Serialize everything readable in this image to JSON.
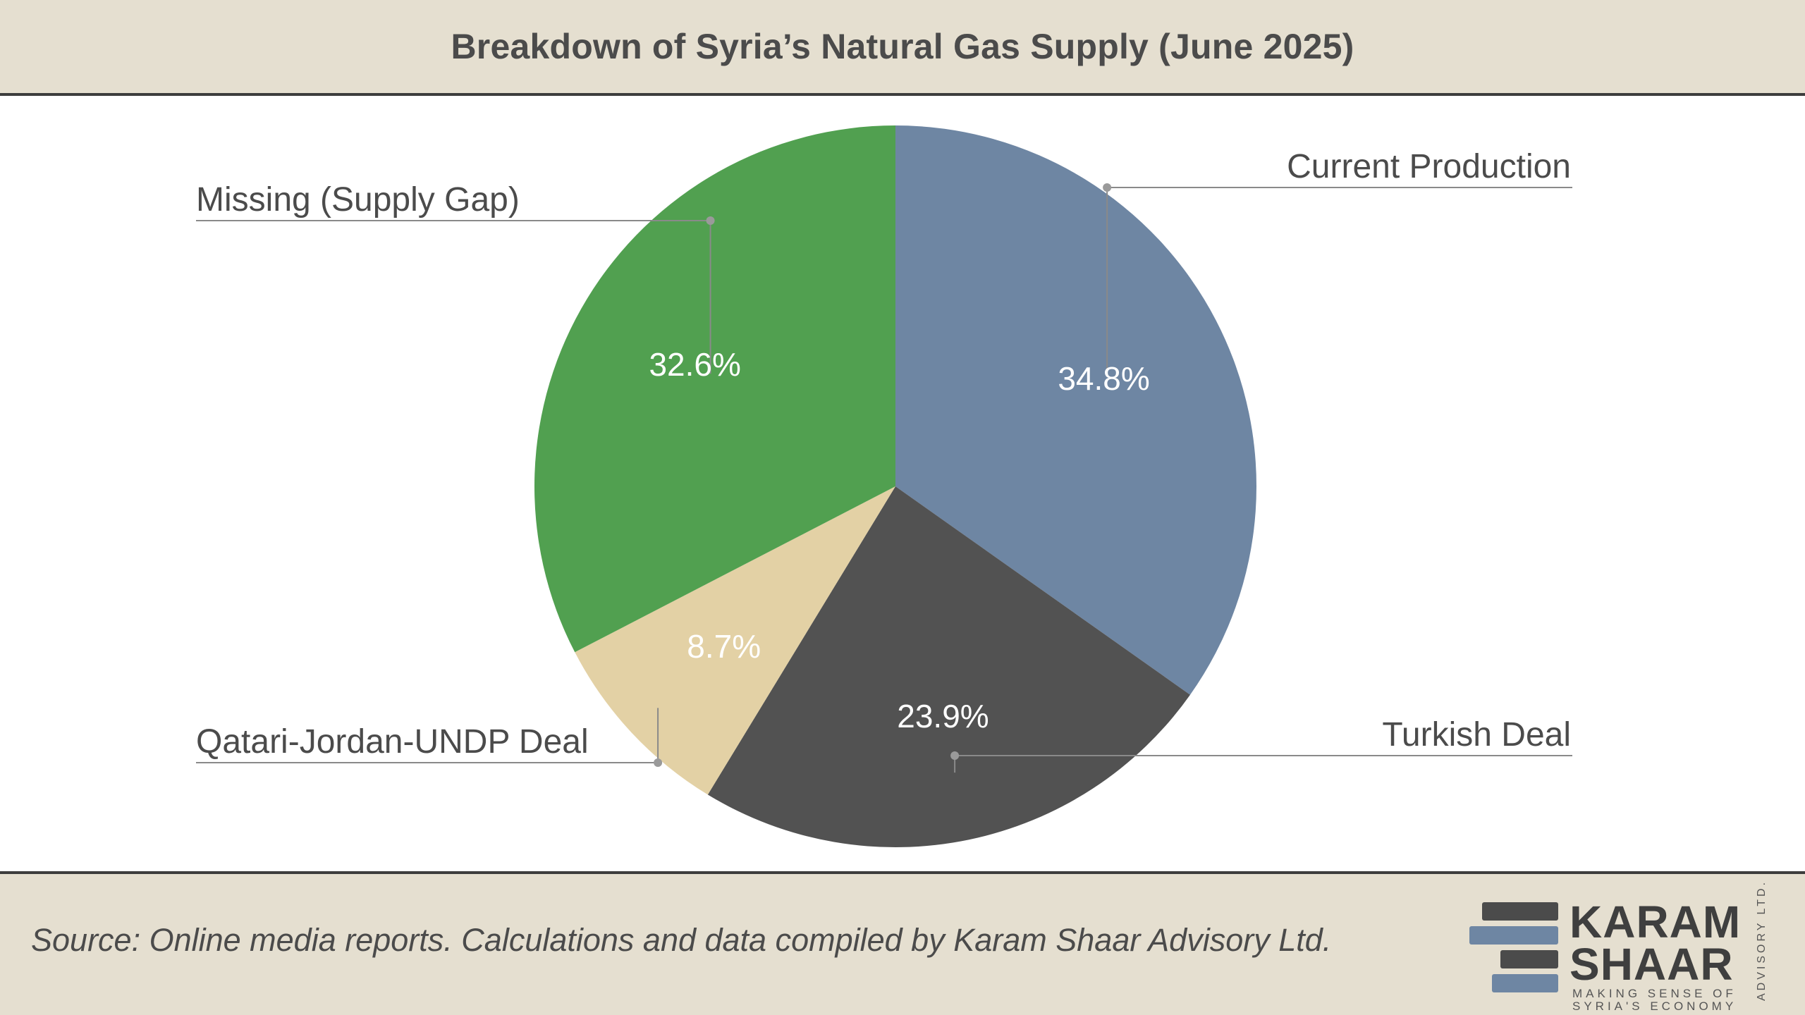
{
  "title": "Breakdown of Syria’s Natural Gas Supply (June 2025)",
  "source": "Source: Online media reports. Calculations and data compiled by Karam Shaar Advisory Ltd.",
  "logo": {
    "line1": "KARAM",
    "line2": "SHAAR",
    "tagline1": "MAKING SENSE OF",
    "tagline2": "SYRIA'S ECONOMY",
    "vertical": "ADVISORY LTD."
  },
  "colors": {
    "header_bg": "#e5dfd0",
    "rule": "#3d3d3d"
  },
  "chart_data": {
    "type": "pie",
    "title": "Breakdown of Syria’s Natural Gas Supply (June 2025)",
    "start": "12 o'clock, clockwise",
    "slices": [
      {
        "label": "Current Production",
        "value": 34.8,
        "display": "34.8%",
        "color": "#6e86a3"
      },
      {
        "label": "Turkish Deal",
        "value": 23.9,
        "display": "23.9%",
        "color": "#525252"
      },
      {
        "label": "Qatari-Jordan-UNDP Deal",
        "value": 8.7,
        "display": "8.7%",
        "color": "#e3d1a5"
      },
      {
        "label": "Missing (Supply Gap)",
        "value": 32.6,
        "display": "32.6%",
        "color": "#51a050"
      }
    ]
  }
}
